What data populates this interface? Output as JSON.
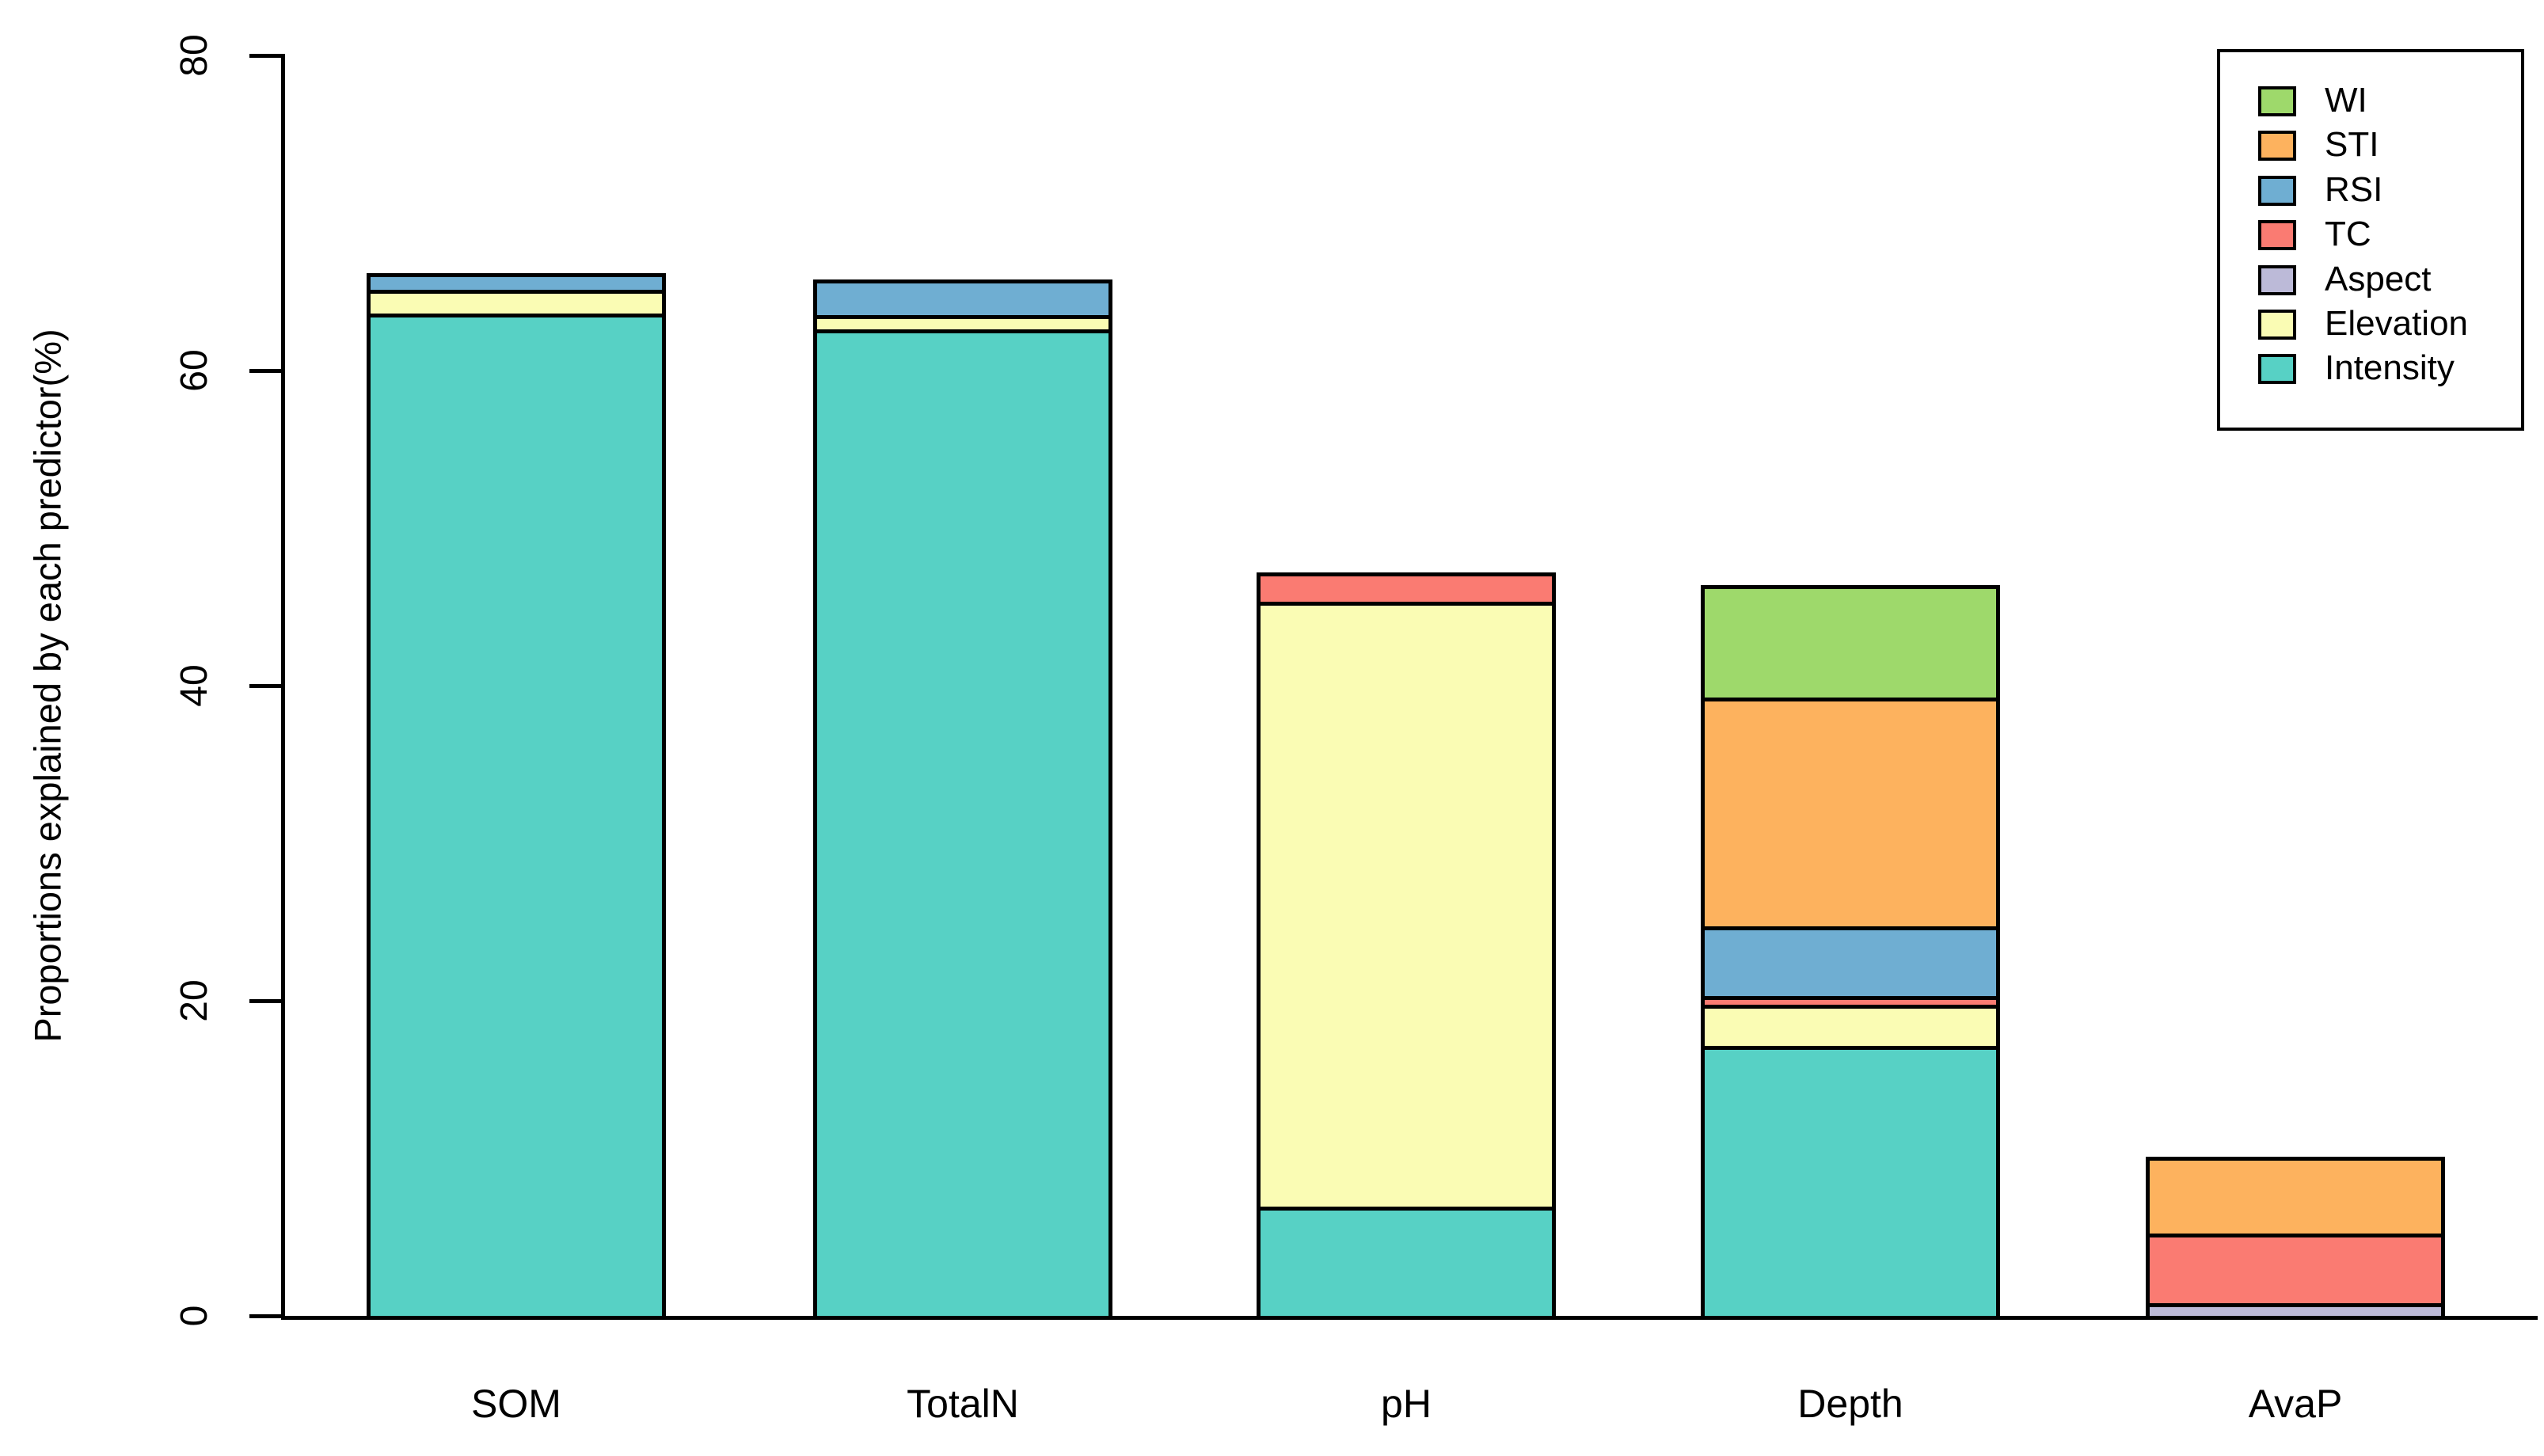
{
  "chart_data": {
    "type": "bar",
    "stacked": true,
    "title": "",
    "xlabel": "",
    "ylabel": "Proportions explained by each predictor(%)",
    "categories": [
      "SOM",
      "TotalN",
      "pH",
      "Depth",
      "AvaP"
    ],
    "series": [
      {
        "name": "WI",
        "color": "#9ED96B",
        "values": [
          0,
          0,
          0,
          7.3,
          0
        ]
      },
      {
        "name": "STI",
        "color": "#FDB25E",
        "values": [
          0,
          0,
          0,
          14.5,
          5.0
        ]
      },
      {
        "name": "RSI",
        "color": "#6FAED2",
        "values": [
          1.2,
          2.4,
          0,
          4.4,
          0
        ]
      },
      {
        "name": "TC",
        "color": "#FA7B72",
        "values": [
          0,
          0,
          2.0,
          0.6,
          4.4
        ]
      },
      {
        "name": "Aspect",
        "color": "#BCBAD8",
        "values": [
          0,
          0,
          0,
          0,
          0.7
        ]
      },
      {
        "name": "Elevation",
        "color": "#FAFCB4",
        "values": [
          1.5,
          0.9,
          38.4,
          2.6,
          0
        ]
      },
      {
        "name": "Intensity",
        "color": "#57D1C5",
        "values": [
          63.5,
          62.5,
          6.8,
          17.0,
          0
        ]
      }
    ],
    "stack_order_bottom_to_top": [
      "Intensity",
      "Elevation",
      "Aspect",
      "TC",
      "RSI",
      "STI",
      "WI"
    ],
    "ylim": [
      0,
      80
    ],
    "yticks": [
      0,
      20,
      40,
      60,
      80
    ],
    "grid": false,
    "legend": {
      "position": "top-right"
    }
  },
  "colors": {
    "axis": "#000000",
    "text": "#000000",
    "background": "#FFFFFF"
  }
}
